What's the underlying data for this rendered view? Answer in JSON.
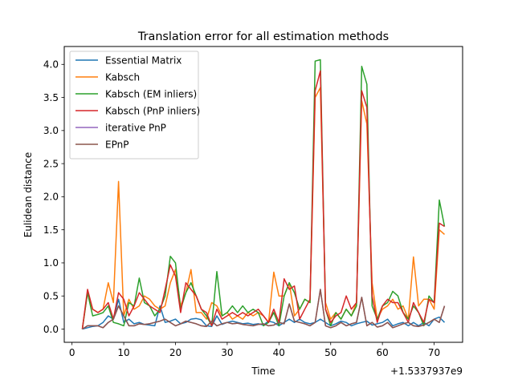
{
  "chart_data": {
    "type": "line",
    "title": "Translation error for all estimation methods",
    "xlabel": "Time",
    "ylabel": "Eulidean distance",
    "x_offset_label": "+1.5337937e9",
    "xlim": [
      -1.5,
      75.5
    ],
    "ylim": [
      -0.2,
      4.27
    ],
    "x_ticks": [
      0,
      10,
      20,
      30,
      40,
      50,
      60,
      70
    ],
    "x_tick_labels": [
      "0",
      "10",
      "20",
      "30",
      "40",
      "50",
      "60",
      "70"
    ],
    "y_ticks": [
      0.0,
      0.5,
      1.0,
      1.5,
      2.0,
      2.5,
      3.0,
      3.5,
      4.0
    ],
    "y_tick_labels": [
      "0.0",
      "0.5",
      "1.0",
      "1.5",
      "2.0",
      "2.5",
      "3.0",
      "3.5",
      "4.0"
    ],
    "grid": false,
    "legend_position": "top-left",
    "x": [
      2,
      3,
      4,
      5,
      6,
      7,
      8,
      9,
      10,
      11,
      12,
      13,
      14,
      15,
      16,
      17,
      18,
      19,
      20,
      21,
      22,
      23,
      24,
      25,
      26,
      27,
      28,
      29,
      30,
      31,
      32,
      33,
      34,
      35,
      36,
      37,
      38,
      39,
      40,
      41,
      42,
      43,
      44,
      45,
      46,
      47,
      48,
      49,
      50,
      51,
      52,
      53,
      54,
      55,
      56,
      57,
      58,
      59,
      60,
      61,
      62,
      63,
      64,
      65,
      66,
      67,
      68,
      69,
      70,
      71,
      72
    ],
    "series": [
      {
        "name": "Essential Matrix",
        "color": "#1f77b4",
        "values": [
          0.0,
          0.02,
          0.04,
          0.05,
          0.1,
          0.2,
          0.15,
          0.45,
          0.1,
          0.15,
          0.08,
          0.1,
          0.07,
          0.06,
          0.05,
          0.35,
          0.1,
          0.12,
          0.15,
          0.08,
          0.1,
          0.15,
          0.16,
          0.14,
          0.05,
          0.04,
          0.2,
          0.07,
          0.1,
          0.12,
          0.1,
          0.08,
          0.09,
          0.07,
          0.08,
          0.06,
          0.12,
          0.1,
          0.05,
          0.1,
          0.15,
          0.1,
          0.15,
          0.1,
          0.08,
          0.1,
          0.15,
          0.1,
          0.05,
          0.08,
          0.12,
          0.1,
          0.05,
          0.08,
          0.1,
          0.12,
          0.06,
          0.08,
          0.1,
          0.15,
          0.05,
          0.08,
          0.1,
          0.05,
          0.1,
          0.05,
          0.1,
          0.05,
          0.15,
          0.18,
          0.1
        ]
      },
      {
        "name": "Kabsch",
        "color": "#ff7f0e",
        "values": [
          0.0,
          0.55,
          0.3,
          0.25,
          0.3,
          0.7,
          0.4,
          2.23,
          0.2,
          0.45,
          0.3,
          0.35,
          0.5,
          0.45,
          0.35,
          0.3,
          0.35,
          0.7,
          0.9,
          0.35,
          0.55,
          0.9,
          0.25,
          0.25,
          0.15,
          0.4,
          0.35,
          0.2,
          0.25,
          0.15,
          0.2,
          0.15,
          0.25,
          0.2,
          0.25,
          0.2,
          0.1,
          0.86,
          0.5,
          0.5,
          0.7,
          0.2,
          0.3,
          0.45,
          0.4,
          3.5,
          3.65,
          0.4,
          0.15,
          0.25,
          0.15,
          0.3,
          0.2,
          0.4,
          3.45,
          3.1,
          0.7,
          0.15,
          0.3,
          0.35,
          0.45,
          0.3,
          0.35,
          0.15,
          1.09,
          0.35,
          0.45,
          0.45,
          0.3,
          1.5,
          1.43
        ]
      },
      {
        "name": "Kabsch (EM inliers)",
        "color": "#2ca02c",
        "values": [
          0.0,
          0.55,
          0.2,
          0.22,
          0.25,
          0.35,
          0.1,
          0.08,
          0.05,
          0.4,
          0.35,
          0.77,
          0.4,
          0.35,
          0.2,
          0.3,
          0.5,
          1.1,
          1.0,
          0.3,
          0.55,
          0.7,
          0.5,
          0.3,
          0.2,
          0.05,
          0.87,
          0.2,
          0.25,
          0.35,
          0.25,
          0.35,
          0.25,
          0.3,
          0.25,
          0.05,
          0.1,
          0.25,
          0.05,
          0.5,
          0.7,
          0.55,
          0.3,
          0.45,
          0.4,
          4.05,
          4.07,
          0.3,
          0.05,
          0.25,
          0.15,
          0.3,
          0.2,
          0.35,
          3.97,
          3.7,
          0.35,
          0.15,
          0.35,
          0.4,
          0.57,
          0.5,
          0.25,
          0.15,
          0.35,
          0.25,
          0.05,
          0.5,
          0.4,
          1.95,
          1.55
        ]
      },
      {
        "name": "Kabsch (PnP inliers)",
        "color": "#d62728",
        "values": [
          0.0,
          0.6,
          0.3,
          0.25,
          0.3,
          0.4,
          0.15,
          0.55,
          0.45,
          0.2,
          0.35,
          0.55,
          0.45,
          0.35,
          0.3,
          0.25,
          0.6,
          0.97,
          0.8,
          0.25,
          0.7,
          0.6,
          0.5,
          0.3,
          0.25,
          0.05,
          0.3,
          0.15,
          0.2,
          0.25,
          0.2,
          0.25,
          0.2,
          0.25,
          0.3,
          0.2,
          0.1,
          0.3,
          0.1,
          0.76,
          0.6,
          0.65,
          0.15,
          0.3,
          0.45,
          3.6,
          3.9,
          0.3,
          0.1,
          0.2,
          0.25,
          0.5,
          0.3,
          0.4,
          3.6,
          3.35,
          0.5,
          0.1,
          0.35,
          0.45,
          0.4,
          0.4,
          0.25,
          0.1,
          0.4,
          0.25,
          0.1,
          0.45,
          0.4,
          1.6,
          1.55
        ]
      },
      {
        "name": "iterative PnP",
        "color": "#9467bd",
        "values": [
          0.0,
          0.05,
          0.05,
          0.05,
          0.02,
          0.1,
          0.15,
          0.35,
          0.2,
          0.05,
          0.05,
          0.08,
          0.07,
          0.08,
          0.1,
          0.12,
          0.15,
          0.1,
          0.05,
          0.08,
          0.12,
          0.1,
          0.08,
          0.05,
          0.04,
          0.12,
          0.05,
          0.08,
          0.1,
          0.08,
          0.09,
          0.07,
          0.06,
          0.05,
          0.07,
          0.08,
          0.05,
          0.06,
          0.1,
          0.08,
          0.38,
          0.12,
          0.1,
          0.08,
          0.05,
          0.1,
          0.6,
          0.05,
          0.02,
          0.05,
          0.1,
          0.05,
          0.08,
          0.1,
          0.48,
          0.05,
          0.1,
          0.03,
          0.05,
          0.1,
          0.02,
          0.05,
          0.08,
          0.1,
          0.05,
          0.04,
          0.06,
          0.1,
          0.15,
          0.1,
          0.35
        ]
      },
      {
        "name": "EPnP",
        "color": "#8c564b",
        "values": [
          0.0,
          0.05,
          0.05,
          0.05,
          0.02,
          0.1,
          0.15,
          0.35,
          0.2,
          0.05,
          0.05,
          0.08,
          0.07,
          0.08,
          0.1,
          0.12,
          0.15,
          0.1,
          0.05,
          0.08,
          0.12,
          0.1,
          0.08,
          0.05,
          0.04,
          0.12,
          0.05,
          0.08,
          0.1,
          0.08,
          0.09,
          0.07,
          0.06,
          0.05,
          0.07,
          0.08,
          0.05,
          0.06,
          0.1,
          0.08,
          0.38,
          0.12,
          0.1,
          0.08,
          0.05,
          0.1,
          0.6,
          0.05,
          0.02,
          0.05,
          0.1,
          0.05,
          0.08,
          0.1,
          0.48,
          0.05,
          0.1,
          0.03,
          0.05,
          0.1,
          0.02,
          0.05,
          0.08,
          0.1,
          0.05,
          0.04,
          0.06,
          0.1,
          0.15,
          0.1,
          0.35
        ]
      }
    ]
  }
}
